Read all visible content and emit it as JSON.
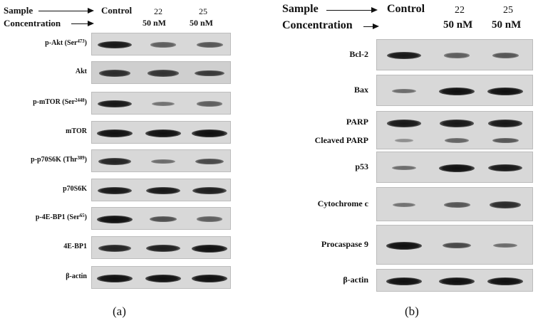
{
  "panel_a": {
    "sample_label": "Sample",
    "concentration_label": "Concentration",
    "lanes": [
      {
        "sample": "Control",
        "concentration": ""
      },
      {
        "sample": "22",
        "concentration": "50 nM"
      },
      {
        "sample": "25",
        "concentration": "50 nM"
      }
    ],
    "blots": [
      {
        "label": "p-Akt (Ser",
        "sup": "473",
        "suffix": ")",
        "bands": [
          0.95,
          0.45,
          0.5
        ]
      },
      {
        "label": "Akt",
        "sup": "",
        "suffix": "",
        "bands": [
          0.8,
          0.75,
          0.7
        ]
      },
      {
        "label": "p-mTOR (Ser",
        "sup": "2448",
        "suffix": ")",
        "bands": [
          0.95,
          0.3,
          0.45
        ]
      },
      {
        "label": "mTOR",
        "sup": "",
        "suffix": "",
        "bands": [
          1.0,
          1.0,
          1.0
        ]
      },
      {
        "label": "p-p70S6K (Thr",
        "sup": "389",
        "suffix": ")",
        "bands": [
          0.85,
          0.35,
          0.6
        ]
      },
      {
        "label": "p70S6K",
        "sup": "",
        "suffix": "",
        "bands": [
          0.95,
          0.95,
          0.9
        ]
      },
      {
        "label": "p-4E-BP1 (Ser",
        "sup": "65",
        "suffix": ")",
        "bands": [
          1.0,
          0.55,
          0.45
        ]
      },
      {
        "label": "4E-BP1",
        "sup": "",
        "suffix": "",
        "bands": [
          0.85,
          0.9,
          1.0
        ]
      },
      {
        "label": "β-actin",
        "sup": "",
        "suffix": "",
        "bands": [
          1.0,
          1.0,
          1.0
        ]
      }
    ],
    "caption": "(a)"
  },
  "panel_b": {
    "sample_label": "Sample",
    "concentration_label": "Concentration",
    "lanes": [
      {
        "sample": "Control",
        "concentration": ""
      },
      {
        "sample": "22",
        "concentration": "50 nM"
      },
      {
        "sample": "25",
        "concentration": "50 nM"
      }
    ],
    "blots": [
      {
        "labels": [
          "Bcl-2"
        ],
        "bands": [
          [
            0.95,
            0.45,
            0.5
          ]
        ]
      },
      {
        "labels": [
          "Bax"
        ],
        "bands": [
          [
            0.35,
            1.0,
            1.0
          ]
        ]
      },
      {
        "labels": [
          "PARP",
          "Cleaved PARP"
        ],
        "bands": [
          [
            0.95,
            0.95,
            0.95
          ],
          [
            0.1,
            0.4,
            0.5
          ]
        ]
      },
      {
        "labels": [
          "p53"
        ],
        "bands": [
          [
            0.35,
            1.0,
            0.95
          ]
        ]
      },
      {
        "labels": [
          "Cytochrome c"
        ],
        "bands": [
          [
            0.3,
            0.5,
            0.8
          ]
        ]
      },
      {
        "labels": [
          "Procaspase 9"
        ],
        "bands": [
          [
            1.0,
            0.6,
            0.35
          ]
        ]
      },
      {
        "labels": [
          "β-actin"
        ],
        "bands": [
          [
            1.0,
            1.0,
            1.0
          ]
        ]
      }
    ],
    "caption": "(b)"
  }
}
